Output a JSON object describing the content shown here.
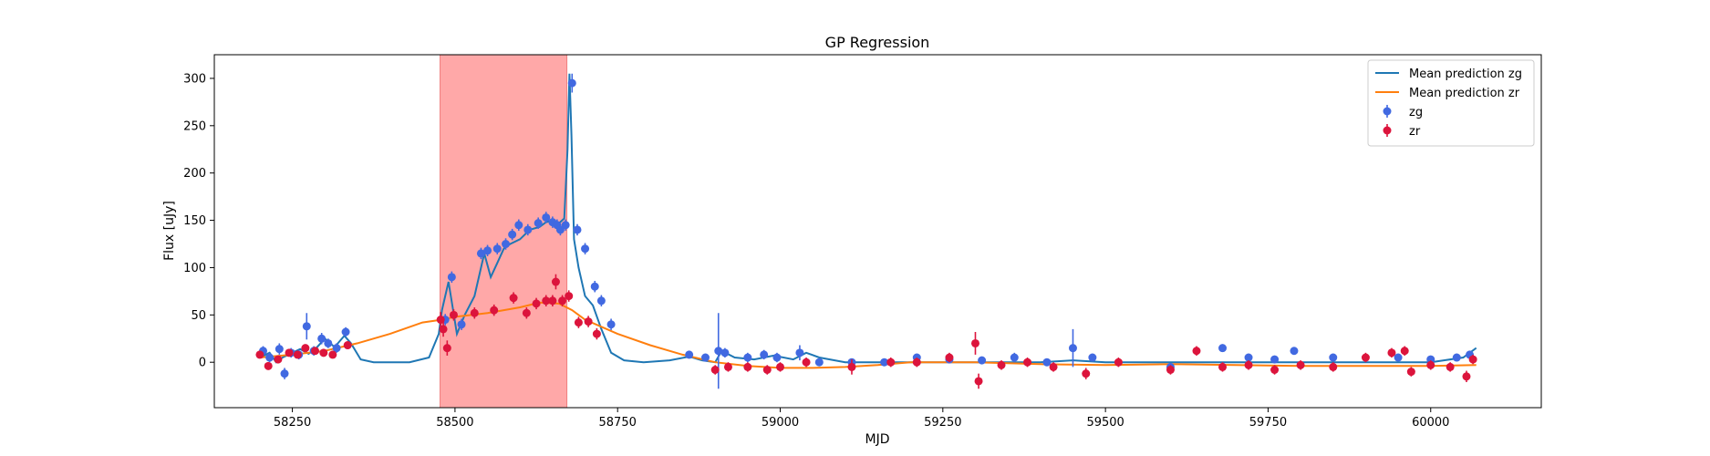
{
  "chart_data": {
    "type": "line",
    "title": "GP Regression",
    "xlabel": "MJD",
    "ylabel": "Flux [uJy]",
    "xlim": [
      58130,
      60170
    ],
    "ylim": [
      -48,
      325
    ],
    "xticks": [
      58250,
      58500,
      58750,
      59000,
      59250,
      59500,
      59750,
      60000
    ],
    "yticks": [
      0,
      50,
      100,
      150,
      200,
      250,
      300
    ],
    "shaded_region": {
      "x": [
        58477,
        58672
      ],
      "color": "#ffa8a8"
    },
    "legend": {
      "placement": "top-right",
      "entries": [
        {
          "label": "Mean prediction zg",
          "kind": "line",
          "color": "#1f77b4"
        },
        {
          "label": "Mean prediction zr",
          "kind": "line",
          "color": "#ff7f0e"
        },
        {
          "label": "zg",
          "kind": "errorbar",
          "color": "#4169e1"
        },
        {
          "label": "zr",
          "kind": "errorbar",
          "color": "#dc143c"
        }
      ]
    },
    "series": [
      {
        "name": "Mean prediction zg",
        "kind": "line",
        "color": "#1f77b4",
        "x": [
          58200,
          58215,
          58225,
          58235,
          58250,
          58262,
          58275,
          58288,
          58300,
          58315,
          58330,
          58340,
          58355,
          58375,
          58400,
          58430,
          58460,
          58475,
          58480,
          58490,
          58496,
          58503,
          58515,
          58530,
          58545,
          58555,
          58565,
          58575,
          58585,
          58600,
          58615,
          58630,
          58640,
          58650,
          58660,
          58668,
          58673,
          58676,
          58679,
          58683,
          58690,
          58700,
          58712,
          58725,
          58740,
          58760,
          58790,
          58830,
          58860,
          58880,
          58900,
          58910,
          58930,
          58960,
          58990,
          59020,
          59040,
          59060,
          59100,
          59200,
          59300,
          59400,
          59450,
          59500,
          59600,
          59700,
          59800,
          59900,
          60000,
          60050,
          60070
        ],
        "y": [
          5,
          10,
          0,
          5,
          10,
          14,
          9,
          16,
          25,
          16,
          28,
          20,
          3,
          0,
          0,
          0,
          5,
          30,
          55,
          85,
          60,
          30,
          50,
          70,
          115,
          90,
          105,
          120,
          125,
          130,
          140,
          143,
          148,
          150,
          147,
          152,
          225,
          305,
          240,
          130,
          100,
          70,
          60,
          35,
          10,
          2,
          0,
          2,
          6,
          2,
          0,
          12,
          5,
          3,
          7,
          3,
          10,
          5,
          0,
          0,
          0,
          0,
          2,
          0,
          0,
          0,
          0,
          0,
          0,
          5,
          15
        ]
      },
      {
        "name": "Mean prediction zr",
        "kind": "line",
        "color": "#ff7f0e",
        "x": [
          58200,
          58250,
          58300,
          58350,
          58400,
          58450,
          58480,
          58500,
          58550,
          58600,
          58630,
          58660,
          58680,
          58700,
          58750,
          58800,
          58850,
          58900,
          58950,
          59000,
          59050,
          59100,
          59150,
          59200,
          59300,
          59400,
          59500,
          59600,
          59700,
          59800,
          59900,
          60000,
          60070
        ],
        "y": [
          5,
          8,
          12,
          20,
          30,
          42,
          45,
          48,
          52,
          58,
          63,
          62,
          55,
          45,
          30,
          18,
          8,
          0,
          -4,
          -6,
          -6,
          -5,
          -3,
          0,
          0,
          -2,
          -3,
          -2,
          -3,
          -4,
          -4,
          -4,
          -3
        ]
      },
      {
        "name": "zg",
        "kind": "errorbar",
        "color": "#4169e1",
        "x": [
          58205,
          58215,
          58230,
          58238,
          58248,
          58260,
          58272,
          58283,
          58295,
          58305,
          58318,
          58332,
          58485,
          58495,
          58510,
          58540,
          58550,
          58565,
          58578,
          58588,
          58598,
          58612,
          58628,
          58640,
          58650,
          58657,
          58662,
          58670,
          58680,
          58688,
          58700,
          58715,
          58725,
          58740,
          58860,
          58885,
          58905,
          58915,
          58950,
          58975,
          58995,
          59030,
          59060,
          59110,
          59160,
          59210,
          59260,
          59310,
          59360,
          59410,
          59450,
          59480,
          59600,
          59680,
          59720,
          59760,
          59790,
          59850,
          59950,
          60000,
          60040,
          60060
        ],
        "y": [
          12,
          5,
          14,
          -12,
          10,
          8,
          38,
          12,
          25,
          20,
          15,
          32,
          45,
          90,
          40,
          115,
          118,
          120,
          125,
          135,
          145,
          140,
          147,
          153,
          148,
          145,
          140,
          145,
          295,
          140,
          120,
          80,
          65,
          40,
          8,
          5,
          12,
          10,
          5,
          8,
          5,
          10,
          0,
          0,
          0,
          5,
          3,
          2,
          5,
          0,
          15,
          5,
          -5,
          15,
          5,
          3,
          12,
          5,
          5,
          3,
          5,
          8
        ],
        "yerr": [
          5,
          5,
          6,
          6,
          5,
          5,
          14,
          5,
          6,
          5,
          5,
          5,
          6,
          6,
          6,
          6,
          6,
          6,
          6,
          6,
          6,
          6,
          6,
          6,
          6,
          6,
          6,
          6,
          10,
          6,
          6,
          6,
          6,
          6,
          4,
          4,
          40,
          5,
          5,
          5,
          5,
          8,
          4,
          4,
          4,
          4,
          4,
          4,
          5,
          4,
          20,
          4,
          4,
          4,
          4,
          4,
          4,
          4,
          4,
          4,
          4,
          4
        ]
      },
      {
        "name": "zr",
        "kind": "errorbar",
        "color": "#dc143c",
        "x": [
          58200,
          58213,
          58228,
          58245,
          58258,
          58270,
          58285,
          58298,
          58312,
          58335,
          58478,
          58482,
          58488,
          58498,
          58530,
          58560,
          58590,
          58610,
          58625,
          58640,
          58650,
          58655,
          58665,
          58675,
          58690,
          58705,
          58718,
          58900,
          58920,
          58950,
          58980,
          59000,
          59040,
          59110,
          59170,
          59210,
          59260,
          59300,
          59305,
          59340,
          59380,
          59420,
          59470,
          59520,
          59600,
          59640,
          59680,
          59720,
          59760,
          59800,
          59850,
          59900,
          59940,
          59960,
          59970,
          60000,
          60030,
          60055,
          60065
        ],
        "y": [
          8,
          -4,
          3,
          10,
          8,
          15,
          12,
          10,
          8,
          18,
          45,
          35,
          15,
          50,
          52,
          55,
          68,
          52,
          62,
          65,
          65,
          85,
          65,
          70,
          42,
          43,
          30,
          -8,
          -5,
          -5,
          -8,
          -5,
          0,
          -5,
          0,
          0,
          5,
          20,
          -20,
          -3,
          0,
          -5,
          -12,
          0,
          -8,
          12,
          -5,
          -3,
          -8,
          -3,
          -5,
          5,
          10,
          12,
          -10,
          -3,
          -5,
          -15,
          3
        ],
        "yerr": [
          4,
          4,
          4,
          4,
          4,
          4,
          4,
          4,
          4,
          4,
          8,
          8,
          8,
          6,
          6,
          6,
          6,
          6,
          6,
          6,
          6,
          8,
          6,
          6,
          6,
          6,
          6,
          5,
          5,
          5,
          5,
          5,
          5,
          8,
          5,
          5,
          5,
          12,
          8,
          5,
          5,
          5,
          6,
          5,
          5,
          5,
          5,
          5,
          5,
          5,
          5,
          5,
          5,
          5,
          5,
          5,
          5,
          6,
          5
        ]
      }
    ]
  }
}
